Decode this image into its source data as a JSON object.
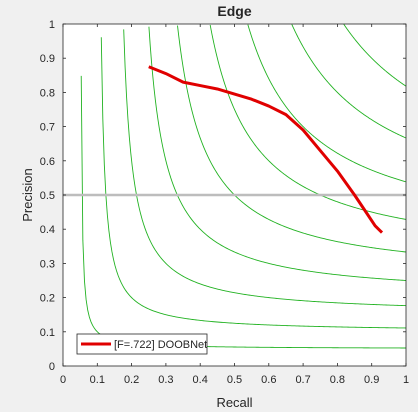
{
  "chart_data": {
    "type": "line",
    "title": "Edge",
    "xlabel": "Recall",
    "ylabel": "Precision",
    "xlim": [
      0,
      1
    ],
    "ylim": [
      0,
      1
    ],
    "xticks": [
      "0",
      "0.1",
      "0.2",
      "0.3",
      "0.4",
      "0.5",
      "0.6",
      "0.7",
      "0.8",
      "0.9",
      "1"
    ],
    "yticks": [
      "0",
      "0.1",
      "0.2",
      "0.3",
      "0.4",
      "0.5",
      "0.6",
      "0.7",
      "0.8",
      "0.9",
      "1"
    ],
    "grid": false,
    "legend_position": "bottom-left",
    "reference_line": {
      "y": 0.5,
      "color": "#bdbdbd"
    },
    "iso_f_curves": {
      "f_values": [
        0.1,
        0.2,
        0.3,
        0.4,
        0.5,
        0.6,
        0.7,
        0.8,
        0.9
      ],
      "color": "#22b222"
    },
    "series": [
      {
        "name": "[F=.722] DOOBNet",
        "color": "#e00000",
        "points": [
          [
            0.25,
            0.875
          ],
          [
            0.3,
            0.855
          ],
          [
            0.35,
            0.83
          ],
          [
            0.4,
            0.82
          ],
          [
            0.45,
            0.81
          ],
          [
            0.5,
            0.795
          ],
          [
            0.55,
            0.78
          ],
          [
            0.6,
            0.76
          ],
          [
            0.65,
            0.735
          ],
          [
            0.7,
            0.69
          ],
          [
            0.75,
            0.63
          ],
          [
            0.8,
            0.57
          ],
          [
            0.85,
            0.5
          ],
          [
            0.88,
            0.455
          ],
          [
            0.91,
            0.41
          ],
          [
            0.93,
            0.39
          ]
        ]
      }
    ]
  }
}
